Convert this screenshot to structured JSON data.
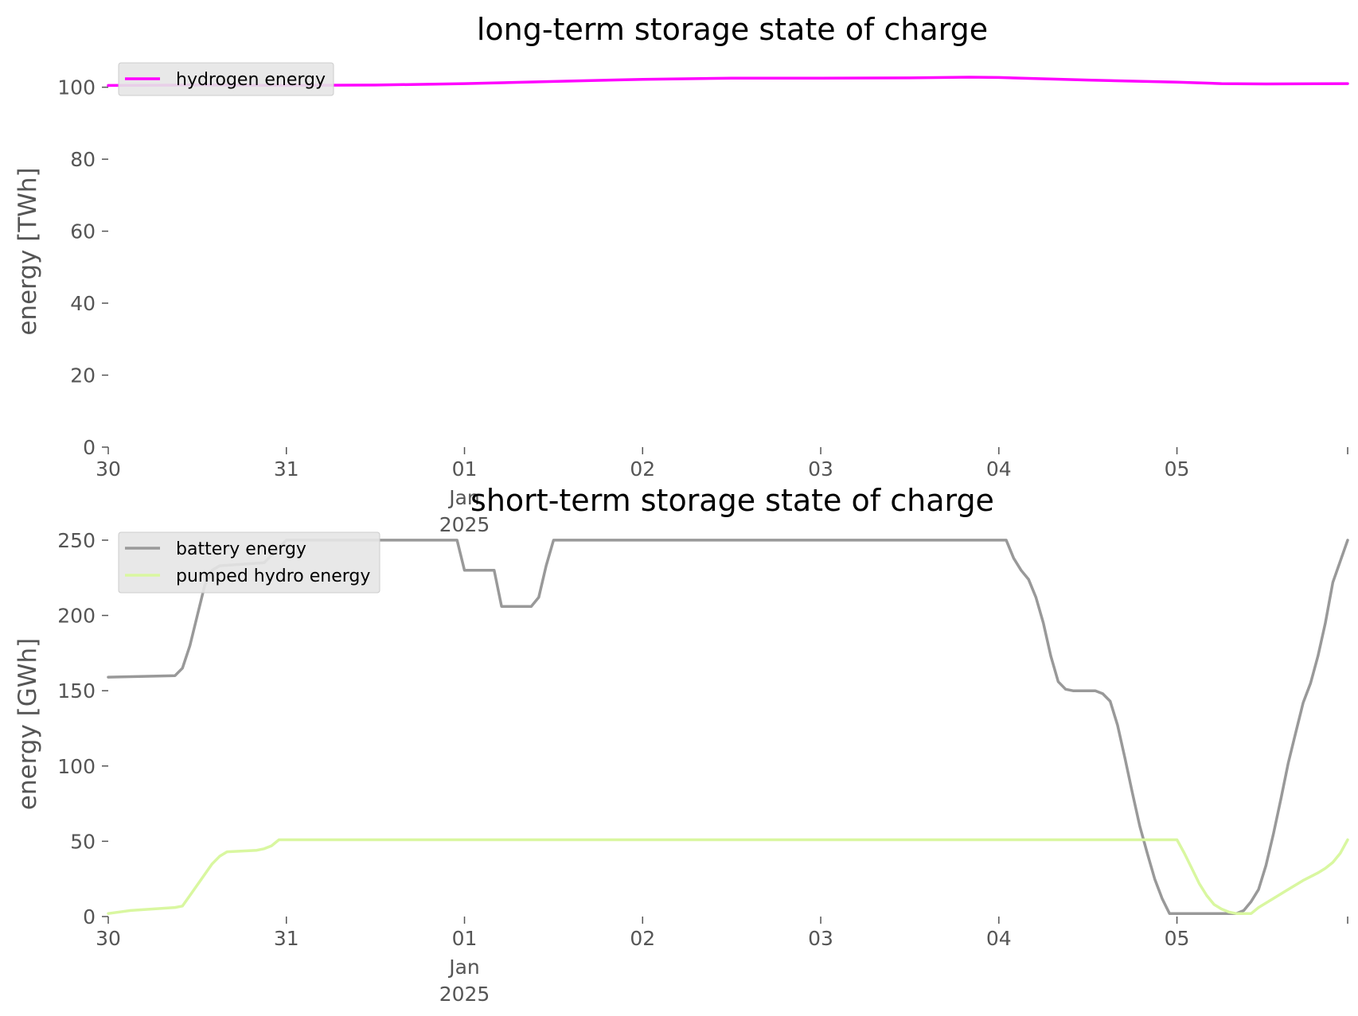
{
  "chart_data": [
    {
      "type": "line",
      "title": "long-term storage state of charge",
      "ylabel": "energy [TWh]",
      "xlabel": "",
      "ylim": [
        0,
        105
      ],
      "yticks": [
        0,
        20,
        40,
        60,
        80,
        100
      ],
      "xlim": [
        "2024-12-30T00:00",
        "2025-01-05T23:00"
      ],
      "xticks": [
        {
          "date": "2024-12-30",
          "label": "30"
        },
        {
          "date": "2024-12-31",
          "label": "31"
        },
        {
          "date": "2025-01-01",
          "label": "01",
          "sublabel": "Jan\n2025"
        },
        {
          "date": "2025-01-02",
          "label": "02"
        },
        {
          "date": "2025-01-03",
          "label": "03"
        },
        {
          "date": "2025-01-04",
          "label": "04"
        },
        {
          "date": "2025-01-05",
          "label": "05"
        }
      ],
      "legend": "top-left",
      "grid": false,
      "series": [
        {
          "name": "hydrogen energy",
          "color": "#ff00ff",
          "points": [
            [
              "2024-12-30T00:00",
              100.5
            ],
            [
              "2024-12-30T12:00",
              100.6
            ],
            [
              "2024-12-31T00:00",
              100.5
            ],
            [
              "2024-12-31T12:00",
              100.6
            ],
            [
              "2025-01-01T00:00",
              101.0
            ],
            [
              "2025-01-01T12:00",
              101.6
            ],
            [
              "2025-01-02T00:00",
              102.2
            ],
            [
              "2025-01-02T12:00",
              102.5
            ],
            [
              "2025-01-03T00:00",
              102.5
            ],
            [
              "2025-01-03T12:00",
              102.6
            ],
            [
              "2025-01-03T20:00",
              102.8
            ],
            [
              "2025-01-04T00:00",
              102.7
            ],
            [
              "2025-01-04T12:00",
              102.0
            ],
            [
              "2025-01-05T00:00",
              101.4
            ],
            [
              "2025-01-05T06:00",
              101.0
            ],
            [
              "2025-01-05T12:00",
              100.9
            ],
            [
              "2025-01-05T23:00",
              101.0
            ]
          ]
        }
      ]
    },
    {
      "type": "line",
      "title": "short-term storage state of charge",
      "ylabel": "energy [GWh]",
      "xlabel": "",
      "ylim": [
        0,
        260
      ],
      "yticks": [
        0,
        50,
        100,
        150,
        200,
        250
      ],
      "xlim": [
        "2024-12-30T00:00",
        "2025-01-05T23:00"
      ],
      "xticks": [
        {
          "date": "2024-12-30",
          "label": "30"
        },
        {
          "date": "2024-12-31",
          "label": "31"
        },
        {
          "date": "2025-01-01",
          "label": "01",
          "sublabel": "Jan\n2025"
        },
        {
          "date": "2025-01-02",
          "label": "02"
        },
        {
          "date": "2025-01-03",
          "label": "03"
        },
        {
          "date": "2025-01-04",
          "label": "04"
        },
        {
          "date": "2025-01-05",
          "label": "05"
        }
      ],
      "legend": "top-left",
      "grid": false,
      "series": [
        {
          "name": "battery energy",
          "color": "#999999",
          "points": [
            [
              "2024-12-30T00:00",
              159
            ],
            [
              "2024-12-30T09:00",
              160
            ],
            [
              "2024-12-30T10:00",
              165
            ],
            [
              "2024-12-30T11:00",
              180
            ],
            [
              "2024-12-30T12:00",
              200
            ],
            [
              "2024-12-30T13:00",
              220
            ],
            [
              "2024-12-30T14:00",
              230
            ],
            [
              "2024-12-30T15:00",
              233
            ],
            [
              "2024-12-30T18:00",
              234
            ],
            [
              "2024-12-30T21:00",
              235
            ],
            [
              "2024-12-30T22:00",
              240
            ],
            [
              "2024-12-30T23:00",
              245
            ],
            [
              "2024-12-31T00:00",
              250
            ],
            [
              "2024-12-31T23:00",
              250
            ],
            [
              "2025-01-01T00:00",
              230
            ],
            [
              "2025-01-01T04:00",
              230
            ],
            [
              "2025-01-01T05:00",
              206
            ],
            [
              "2025-01-01T09:00",
              206
            ],
            [
              "2025-01-01T10:00",
              212
            ],
            [
              "2025-01-01T11:00",
              233
            ],
            [
              "2025-01-01T12:00",
              250
            ],
            [
              "2025-01-04T01:00",
              250
            ],
            [
              "2025-01-04T02:00",
              238
            ],
            [
              "2025-01-04T03:00",
              230
            ],
            [
              "2025-01-04T04:00",
              224
            ],
            [
              "2025-01-04T05:00",
              212
            ],
            [
              "2025-01-04T06:00",
              195
            ],
            [
              "2025-01-04T07:00",
              173
            ],
            [
              "2025-01-04T08:00",
              156
            ],
            [
              "2025-01-04T09:00",
              151
            ],
            [
              "2025-01-04T10:00",
              150
            ],
            [
              "2025-01-04T13:00",
              150
            ],
            [
              "2025-01-04T14:00",
              148
            ],
            [
              "2025-01-04T15:00",
              143
            ],
            [
              "2025-01-04T16:00",
              127
            ],
            [
              "2025-01-04T17:00",
              105
            ],
            [
              "2025-01-04T18:00",
              82
            ],
            [
              "2025-01-04T19:00",
              60
            ],
            [
              "2025-01-04T20:00",
              42
            ],
            [
              "2025-01-04T21:00",
              25
            ],
            [
              "2025-01-04T22:00",
              12
            ],
            [
              "2025-01-04T23:00",
              2
            ],
            [
              "2025-01-05T08:00",
              2
            ],
            [
              "2025-01-05T09:00",
              4
            ],
            [
              "2025-01-05T10:00",
              10
            ],
            [
              "2025-01-05T11:00",
              18
            ],
            [
              "2025-01-05T12:00",
              34
            ],
            [
              "2025-01-05T13:00",
              55
            ],
            [
              "2025-01-05T14:00",
              78
            ],
            [
              "2025-01-05T15:00",
              102
            ],
            [
              "2025-01-05T16:00",
              122
            ],
            [
              "2025-01-05T17:00",
              142
            ],
            [
              "2025-01-05T18:00",
              155
            ],
            [
              "2025-01-05T19:00",
              173
            ],
            [
              "2025-01-05T20:00",
              195
            ],
            [
              "2025-01-05T21:00",
              222
            ],
            [
              "2025-01-05T23:00",
              250
            ]
          ]
        },
        {
          "name": "pumped hydro energy",
          "color": "#d9f7a0",
          "points": [
            [
              "2024-12-30T00:00",
              2
            ],
            [
              "2024-12-30T03:00",
              4
            ],
            [
              "2024-12-30T06:00",
              5
            ],
            [
              "2024-12-30T09:00",
              6
            ],
            [
              "2024-12-30T10:00",
              7
            ],
            [
              "2024-12-30T11:00",
              14
            ],
            [
              "2024-12-30T12:00",
              21
            ],
            [
              "2024-12-30T13:00",
              28
            ],
            [
              "2024-12-30T14:00",
              35
            ],
            [
              "2024-12-30T15:00",
              40
            ],
            [
              "2024-12-30T16:00",
              43
            ],
            [
              "2024-12-30T20:00",
              44
            ],
            [
              "2024-12-30T21:00",
              45
            ],
            [
              "2024-12-30T22:00",
              47
            ],
            [
              "2024-12-30T23:00",
              51
            ],
            [
              "2025-01-04T23:00",
              51
            ],
            [
              "2025-01-05T00:00",
              51
            ],
            [
              "2025-01-05T01:00",
              42
            ],
            [
              "2025-01-05T02:00",
              32
            ],
            [
              "2025-01-05T03:00",
              22
            ],
            [
              "2025-01-05T04:00",
              14
            ],
            [
              "2025-01-05T05:00",
              8
            ],
            [
              "2025-01-05T06:00",
              5
            ],
            [
              "2025-01-05T07:00",
              3
            ],
            [
              "2025-01-05T08:00",
              2
            ],
            [
              "2025-01-05T10:00",
              2
            ],
            [
              "2025-01-05T11:00",
              6
            ],
            [
              "2025-01-05T13:00",
              12
            ],
            [
              "2025-01-05T15:00",
              18
            ],
            [
              "2025-01-05T17:00",
              24
            ],
            [
              "2025-01-05T19:00",
              29
            ],
            [
              "2025-01-05T20:00",
              32
            ],
            [
              "2025-01-05T21:00",
              36
            ],
            [
              "2025-01-05T22:00",
              42
            ],
            [
              "2025-01-05T23:00",
              51
            ]
          ]
        }
      ]
    }
  ]
}
